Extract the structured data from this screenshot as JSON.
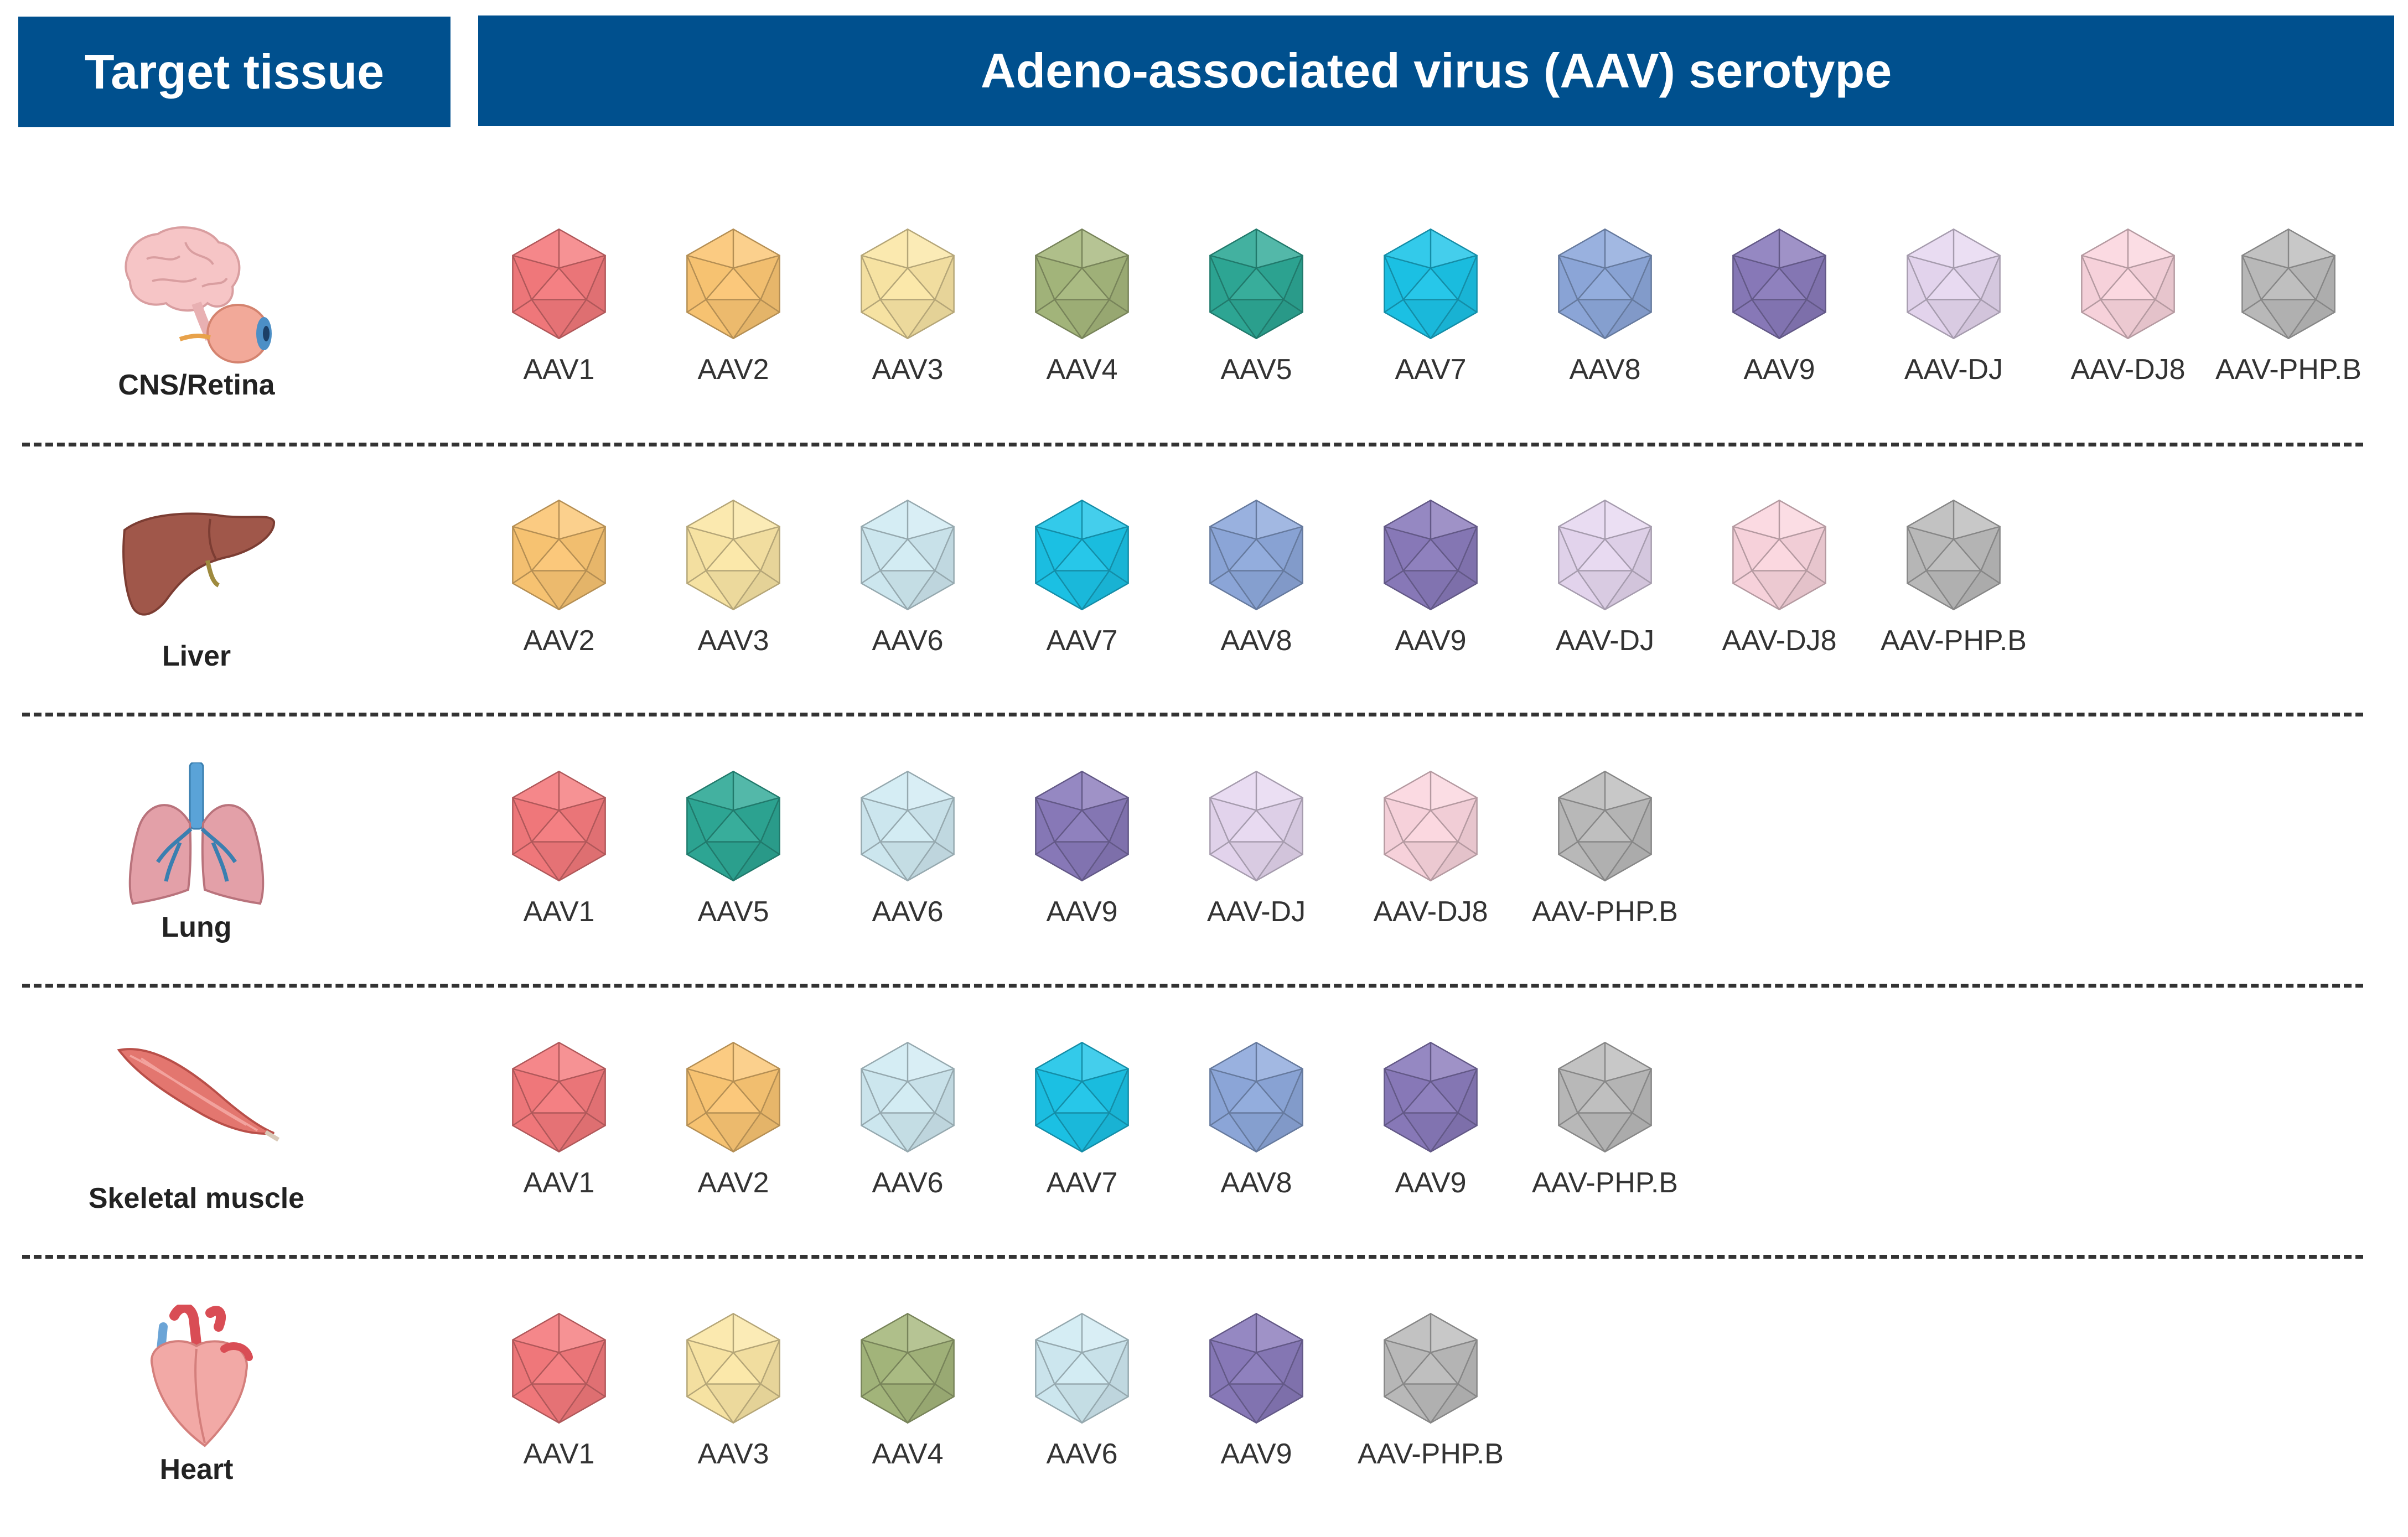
{
  "header": {
    "tissue_title": "Target tissue",
    "serotype_title": "Adeno-associated virus (AAV) serotype"
  },
  "colors": {
    "header_bg": "#00508e",
    "AAV1": "#f47a7d",
    "AAV2": "#fbc674",
    "AAV3": "#fbe7a6",
    "AAV4": "#a6b87d",
    "AAV5": "#2ea996",
    "AAV6": "#d1ebf3",
    "AAV7": "#1cc4e8",
    "AAV8": "#8ea9dc",
    "AAV9": "#8a7bbb",
    "AAV-DJ": "#e7d8f1",
    "AAV-DJ8": "#fbd6df",
    "AAV-PHP.B": "#bcbcbc"
  },
  "rows": [
    {
      "tissue": "CNS/Retina",
      "icon": "brain-eye-icon",
      "serotypes": [
        "AAV1",
        "AAV2",
        "AAV3",
        "AAV4",
        "AAV5",
        "AAV7",
        "AAV8",
        "AAV9",
        "AAV-DJ",
        "AAV-DJ8",
        "AAV-PHP.B"
      ]
    },
    {
      "tissue": "Liver",
      "icon": "liver-icon",
      "serotypes": [
        "AAV2",
        "AAV3",
        "AAV6",
        "AAV7",
        "AAV8",
        "AAV9",
        "AAV-DJ",
        "AAV-DJ8",
        "AAV-PHP.B"
      ]
    },
    {
      "tissue": "Lung",
      "icon": "lung-icon",
      "serotypes": [
        "AAV1",
        "AAV5",
        "AAV6",
        "AAV9",
        "AAV-DJ",
        "AAV-DJ8",
        "AAV-PHP.B"
      ]
    },
    {
      "tissue": "Skeletal muscle",
      "icon": "muscle-icon",
      "serotypes": [
        "AAV1",
        "AAV2",
        "AAV6",
        "AAV7",
        "AAV8",
        "AAV9",
        "AAV-PHP.B"
      ]
    },
    {
      "tissue": "Heart",
      "icon": "heart-icon",
      "serotypes": [
        "AAV1",
        "AAV3",
        "AAV4",
        "AAV6",
        "AAV9",
        "AAV-PHP.B"
      ]
    }
  ]
}
